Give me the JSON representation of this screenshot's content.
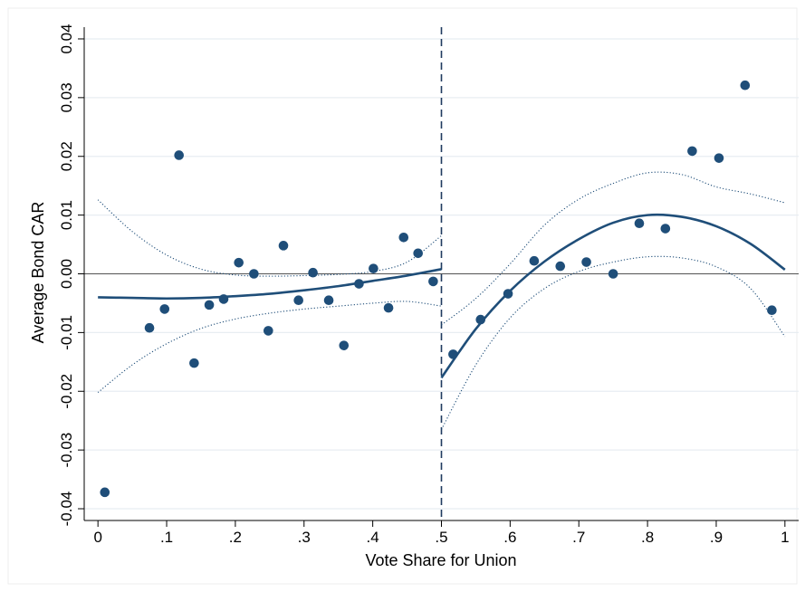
{
  "chart_data": {
    "type": "scatter",
    "title": "",
    "xlabel": "Vote Share for Union",
    "ylabel": "Average Bond CAR",
    "xlim": [
      -0.02,
      1.02
    ],
    "ylim": [
      -0.042,
      0.042
    ],
    "x_ticks": [
      0,
      0.1,
      0.2,
      0.3,
      0.4,
      0.5,
      0.6,
      0.7,
      0.8,
      0.9,
      1
    ],
    "x_tick_labels": [
      "0",
      ".1",
      ".2",
      ".3",
      ".4",
      ".5",
      ".6",
      ".7",
      ".8",
      ".9",
      "1"
    ],
    "y_ticks": [
      -0.04,
      -0.03,
      -0.02,
      -0.01,
      0,
      0.01,
      0.02,
      0.03,
      0.04
    ],
    "y_tick_labels": [
      "-0.04",
      "-0.03",
      "-0.02",
      "-0.01",
      "0.00",
      "0.01",
      "0.02",
      "0.03",
      "0.04"
    ],
    "grid": "horizontal",
    "cutoff": 0.5,
    "zero_line": 0,
    "colors": {
      "points": "#1f4e79",
      "fit": "#1f4e79",
      "grid": "#e8edf2",
      "reference": "#555555"
    },
    "points": {
      "x": [
        0.01,
        0.075,
        0.097,
        0.118,
        0.14,
        0.162,
        0.183,
        0.205,
        0.227,
        0.248,
        0.27,
        0.292,
        0.313,
        0.336,
        0.358,
        0.38,
        0.401,
        0.423,
        0.445,
        0.466,
        0.488,
        0.517,
        0.557,
        0.597,
        0.635,
        0.673,
        0.711,
        0.75,
        0.788,
        0.826,
        0.865,
        0.904,
        0.942,
        0.981
      ],
      "y": [
        -0.0372,
        -0.0092,
        -0.006,
        0.0202,
        -0.0152,
        -0.0053,
        -0.0043,
        0.0019,
        0.0,
        -0.0097,
        0.0048,
        -0.0045,
        0.0002,
        -0.0045,
        -0.0122,
        -0.0017,
        0.0009,
        -0.0058,
        0.0062,
        0.0035,
        -0.0013,
        -0.0137,
        -0.0078,
        -0.0034,
        0.0022,
        0.0013,
        0.002,
        0.0,
        0.0086,
        0.0077,
        0.0209,
        0.0197,
        0.0321,
        -0.0062
      ]
    },
    "fit_left": {
      "x": [
        0.0,
        0.05,
        0.1,
        0.15,
        0.2,
        0.25,
        0.3,
        0.35,
        0.4,
        0.45,
        0.5
      ],
      "y": [
        -0.004,
        -0.0041,
        -0.0042,
        -0.0041,
        -0.0038,
        -0.0034,
        -0.0028,
        -0.0021,
        -0.0012,
        -0.0003,
        0.0008
      ],
      "lower": [
        -0.0202,
        -0.0155,
        -0.0119,
        -0.0093,
        -0.0077,
        -0.0067,
        -0.006,
        -0.0055,
        -0.005,
        -0.0047,
        -0.0055
      ],
      "upper": [
        0.0126,
        0.0072,
        0.0032,
        0.0008,
        -0.0002,
        -0.0004,
        -0.0003,
        -0.0001,
        0.0004,
        0.002,
        0.0065
      ]
    },
    "fit_right": {
      "x": [
        0.5,
        0.55,
        0.6,
        0.65,
        0.7,
        0.75,
        0.8,
        0.85,
        0.9,
        0.95,
        1.0
      ],
      "y": [
        -0.0177,
        -0.0094,
        -0.0029,
        0.0021,
        0.0059,
        0.0087,
        0.01,
        0.0097,
        0.0081,
        0.0051,
        0.0007
      ],
      "lower": [
        -0.0265,
        -0.0155,
        -0.0075,
        -0.0025,
        0.0004,
        0.002,
        0.0029,
        0.0027,
        0.0012,
        -0.0025,
        -0.0107
      ],
      "upper": [
        -0.0087,
        -0.0042,
        0.0017,
        0.0083,
        0.0127,
        0.0154,
        0.0172,
        0.0169,
        0.0148,
        0.0136,
        0.0121
      ]
    }
  }
}
